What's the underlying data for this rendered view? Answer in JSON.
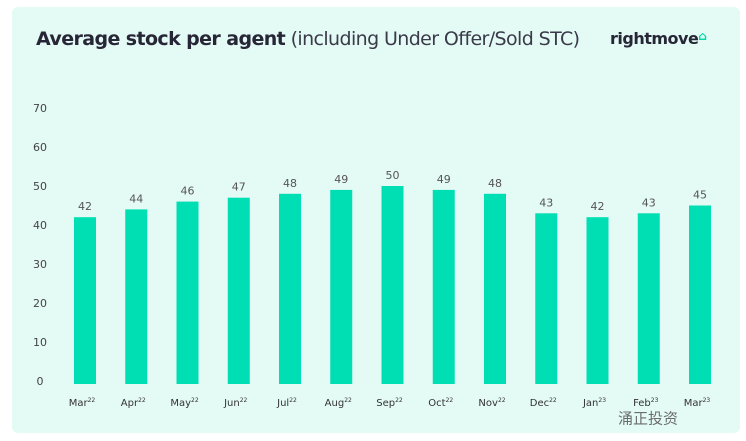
{
  "header": {
    "title_bold": "Average stock per agent",
    "title_rest": "(including Under Offer/Sold STC)",
    "logo": "rightmove",
    "logo_icon": "house-icon"
  },
  "watermark": "涌正投资",
  "colors": {
    "bar": "#00deb4",
    "background": "#e4faf4"
  },
  "chart_data": {
    "type": "bar",
    "title": "Average stock per agent (including Under Offer/Sold STC)",
    "categories": [
      "Mar22",
      "Apr22",
      "May22",
      "Jun22",
      "Jul22",
      "Aug22",
      "Sep22",
      "Oct22",
      "Nov22",
      "Dec22",
      "Jan23",
      "Feb23",
      "Mar23"
    ],
    "category_labels": [
      [
        "Mar",
        "22"
      ],
      [
        "Apr",
        "22"
      ],
      [
        "May",
        "22"
      ],
      [
        "Jun",
        "22"
      ],
      [
        "Jul",
        "22"
      ],
      [
        "Aug",
        "22"
      ],
      [
        "Sep",
        "22"
      ],
      [
        "Oct",
        "22"
      ],
      [
        "Nov",
        "22"
      ],
      [
        "Dec",
        "22"
      ],
      [
        "Jan",
        "23"
      ],
      [
        "Feb",
        "23"
      ],
      [
        "Mar",
        "23"
      ]
    ],
    "values": [
      42,
      44,
      46,
      47,
      48,
      49,
      50,
      49,
      48,
      43,
      42,
      43,
      45
    ],
    "ylim": [
      0,
      70
    ],
    "yticks": [
      0,
      10,
      20,
      30,
      40,
      50,
      60,
      70
    ],
    "grid": false,
    "data_labels": true
  }
}
